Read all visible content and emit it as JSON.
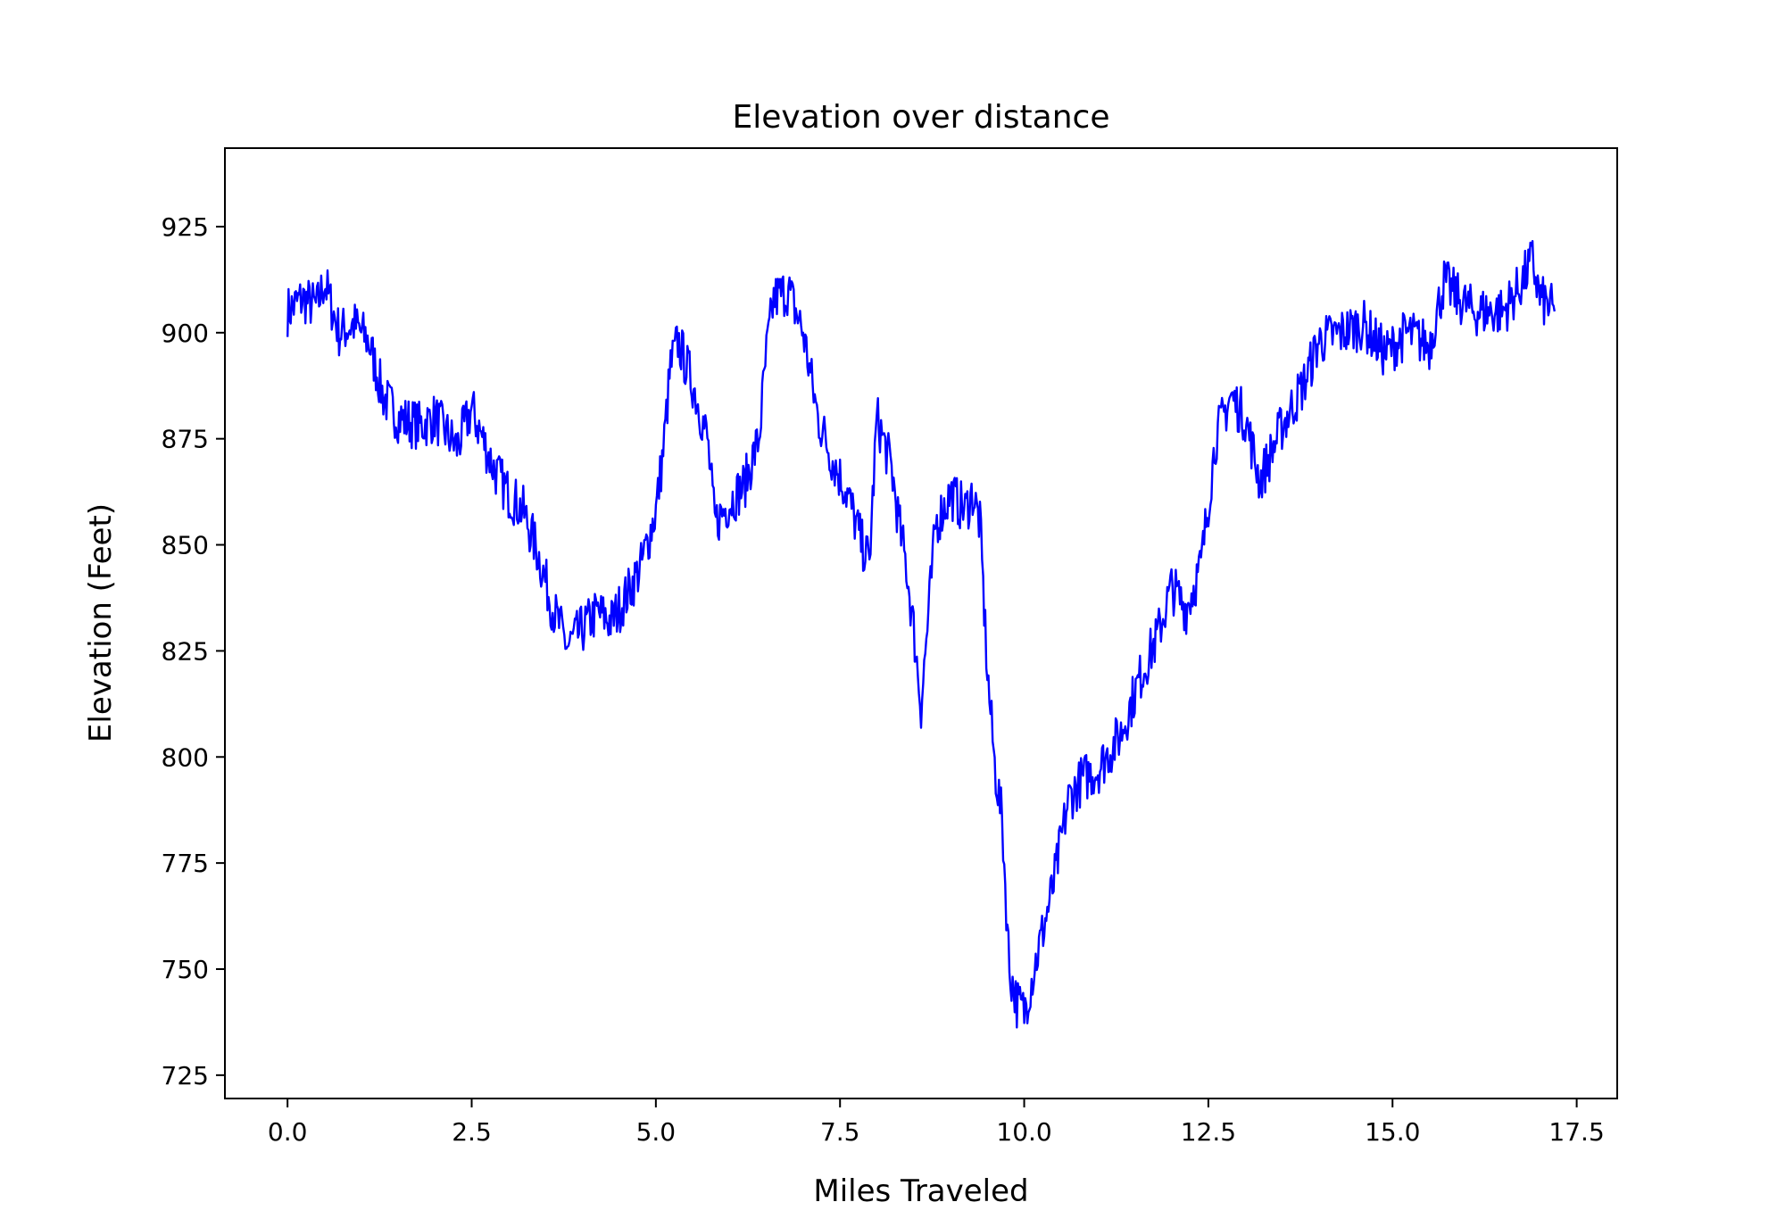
{
  "chart_data": {
    "type": "line",
    "title": "Elevation over distance",
    "xlabel": "Miles Traveled",
    "ylabel": "Elevation (Feet)",
    "xlim": [
      -0.85,
      18.05
    ],
    "ylim": [
      719.5,
      943.5
    ],
    "xticks": [
      0.0,
      2.5,
      5.0,
      7.5,
      10.0,
      12.5,
      15.0,
      17.5
    ],
    "xtick_labels": [
      "0.0",
      "2.5",
      "5.0",
      "7.5",
      "10.0",
      "12.5",
      "15.0",
      "17.5"
    ],
    "yticks": [
      725,
      750,
      775,
      800,
      825,
      850,
      875,
      900,
      925
    ],
    "ytick_labels": [
      "725",
      "750",
      "775",
      "800",
      "825",
      "850",
      "875",
      "900",
      "925"
    ],
    "grid": false,
    "legend": "none",
    "series": [
      {
        "color": "#0000ff",
        "x": [
          0.0,
          0.2,
          0.4,
          0.5,
          0.7,
          0.9,
          1.1,
          1.3,
          1.5,
          1.8,
          2.0,
          2.3,
          2.5,
          2.8,
          3.0,
          3.2,
          3.4,
          3.6,
          3.8,
          4.0,
          4.2,
          4.4,
          4.6,
          4.8,
          5.0,
          5.1,
          5.2,
          5.3,
          5.5,
          5.7,
          5.8,
          6.0,
          6.2,
          6.4,
          6.5,
          6.6,
          6.8,
          7.0,
          7.2,
          7.4,
          7.6,
          7.8,
          7.9,
          8.0,
          8.2,
          8.3,
          8.4,
          8.5,
          8.6,
          8.8,
          9.0,
          9.2,
          9.3,
          9.4,
          9.5,
          9.6,
          9.7,
          9.8,
          9.9,
          10.0,
          10.2,
          10.4,
          10.6,
          10.8,
          11.0,
          11.3,
          11.6,
          11.8,
          12.0,
          12.2,
          12.4,
          12.6,
          12.8,
          13.0,
          13.2,
          13.5,
          13.8,
          14.0,
          14.3,
          14.6,
          14.9,
          15.2,
          15.5,
          15.7,
          15.9,
          16.1,
          16.3,
          16.5,
          16.7,
          16.9,
          17.0,
          17.2
        ],
        "y": [
          905,
          908,
          906,
          912,
          900,
          902,
          898,
          885,
          880,
          878,
          880,
          873,
          882,
          868,
          862,
          858,
          848,
          835,
          826,
          830,
          834,
          832,
          838,
          845,
          858,
          872,
          892,
          898,
          888,
          875,
          855,
          860,
          864,
          875,
          895,
          908,
          910,
          900,
          880,
          870,
          862,
          850,
          846,
          880,
          868,
          855,
          845,
          830,
          812,
          855,
          862,
          858,
          862,
          855,
          820,
          798,
          785,
          750,
          742,
          740,
          755,
          770,
          790,
          795,
          797,
          805,
          820,
          828,
          840,
          835,
          845,
          875,
          885,
          880,
          865,
          878,
          888,
          898,
          900,
          902,
          895,
          900,
          897,
          912,
          908,
          905,
          905,
          905,
          910,
          917,
          908,
          905
        ]
      }
    ]
  }
}
